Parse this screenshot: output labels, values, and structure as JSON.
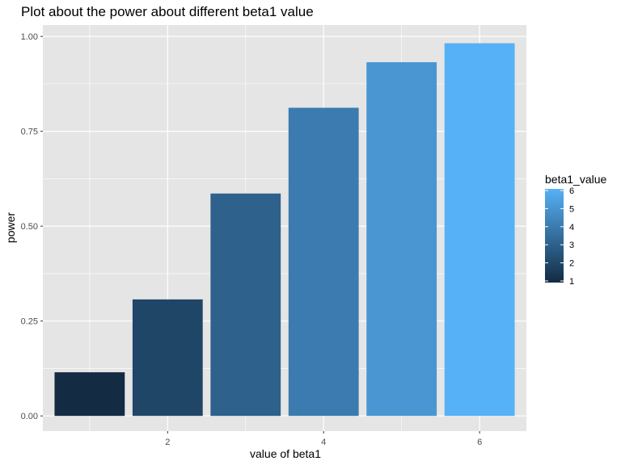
{
  "chart_data": {
    "type": "bar",
    "title": "Plot about the power about different beta1 value",
    "xlabel": "value of beta1",
    "ylabel": "power",
    "x": [
      1,
      2,
      3,
      4,
      5,
      6
    ],
    "values": [
      0.115,
      0.307,
      0.586,
      0.812,
      0.932,
      0.982
    ],
    "xlim": [
      0.4,
      6.6
    ],
    "ylim": [
      -0.04,
      1.03
    ],
    "x_ticks": [
      2,
      4,
      6
    ],
    "x_tick_labels": [
      "2",
      "4",
      "6"
    ],
    "y_ticks": [
      0,
      0.25,
      0.5,
      0.75,
      1.0
    ],
    "y_tick_labels": [
      "0.00",
      "0.25",
      "0.50",
      "0.75",
      "1.00"
    ],
    "grid": true,
    "panel_background": "#e5e5e5",
    "grid_color": "#ffffff",
    "color_scale": {
      "low": "#132b43",
      "high": "#56b1f7"
    },
    "legend": {
      "title": "beta1_value",
      "position": "right",
      "breaks": [
        1,
        2,
        3,
        4,
        5,
        6
      ],
      "labels": [
        "1",
        "2",
        "3",
        "4",
        "5",
        "6"
      ]
    }
  }
}
